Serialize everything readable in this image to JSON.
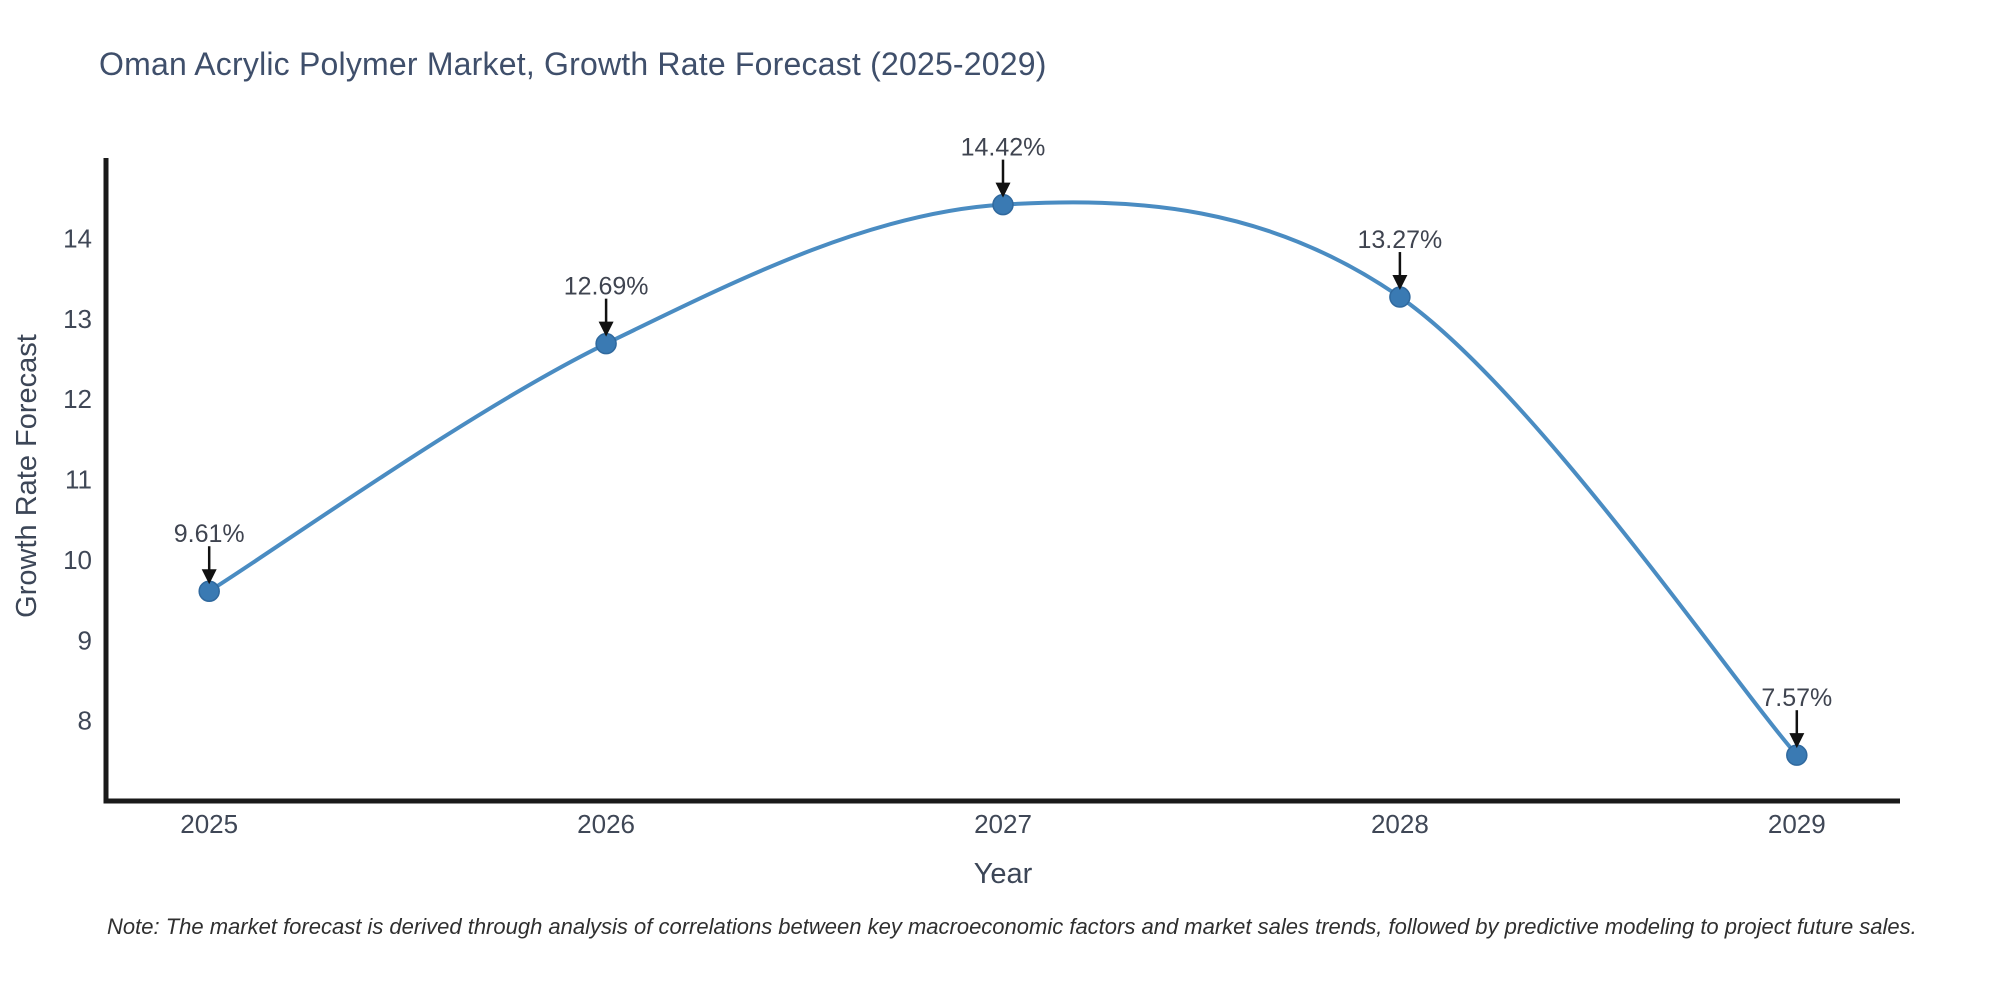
{
  "note": "Note: The market forecast is derived through analysis of correlations between key macroeconomic factors and market sales trends, followed by predictive modeling to project future sales.",
  "chart_data": {
    "type": "line",
    "title": "Oman Acrylic Polymer Market, Growth Rate Forecast (2025-2029)",
    "xlabel": "Year",
    "ylabel": "Growth Rate Forecast",
    "categories": [
      "2025",
      "2026",
      "2027",
      "2028",
      "2029"
    ],
    "x": [
      2025,
      2026,
      2027,
      2028,
      2029
    ],
    "series": [
      {
        "name": "Growth Rate Forecast",
        "values": [
          9.61,
          12.69,
          14.42,
          13.27,
          7.57
        ]
      }
    ],
    "point_labels": [
      "9.61%",
      "12.69%",
      "14.42%",
      "13.27%",
      "7.57%"
    ],
    "yticks": [
      8,
      9,
      10,
      11,
      12,
      13,
      14
    ],
    "ylim": [
      7.0,
      15.0
    ],
    "xlim": [
      2024.74,
      2029.26
    ],
    "line_shape": "spline",
    "grid": false,
    "legend_position": "none",
    "annotation_style": "arrow-down-to-point",
    "colors": {
      "line": "#4a8cc2",
      "marker": "#3a7ab3",
      "marker_edge": "#30699e",
      "axis": "#1a1a1a",
      "tick_text": "#3f4756",
      "annotation_text": "#3f4450",
      "arrow": "#111111",
      "title_text": "#3f4f6b",
      "axis_title_text": "#3c4657",
      "note_text": "#2f2f2f",
      "background": "#ffffff"
    }
  }
}
